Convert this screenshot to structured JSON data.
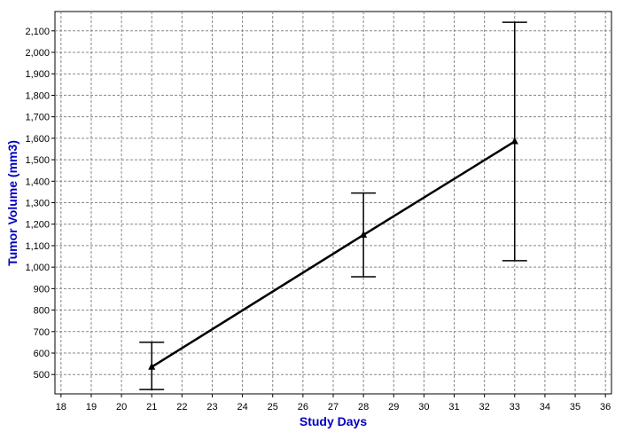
{
  "chart_data": {
    "type": "line",
    "title": "",
    "xlabel": "Study Days",
    "ylabel": "Tumor Volume (mm3)",
    "label_color": "#0000c0",
    "line_color": "#000000",
    "grid": true,
    "grid_style": "dashed",
    "xlim": [
      17.8,
      36.2
    ],
    "ylim": [
      410,
      2190
    ],
    "x_ticks": [
      18,
      19,
      20,
      21,
      22,
      23,
      24,
      25,
      26,
      27,
      28,
      29,
      30,
      31,
      32,
      33,
      34,
      35,
      36
    ],
    "y_ticks": [
      500,
      600,
      700,
      800,
      900,
      1000,
      1100,
      1200,
      1300,
      1400,
      1500,
      1600,
      1700,
      1800,
      1900,
      2000,
      2100
    ],
    "y_tick_labels": [
      "500",
      "600",
      "700",
      "800",
      "900",
      "1,000",
      "1,100",
      "1,200",
      "1,300",
      "1,400",
      "1,500",
      "1,600",
      "1,700",
      "1,800",
      "1,900",
      "2,000",
      "2,100"
    ],
    "marker": "triangle",
    "series": [
      {
        "x": [
          21,
          28,
          33
        ],
        "y": [
          535,
          1150,
          1585
        ],
        "error_low": [
          430,
          955,
          1030
        ],
        "error_high": [
          650,
          1345,
          2140
        ]
      }
    ]
  }
}
